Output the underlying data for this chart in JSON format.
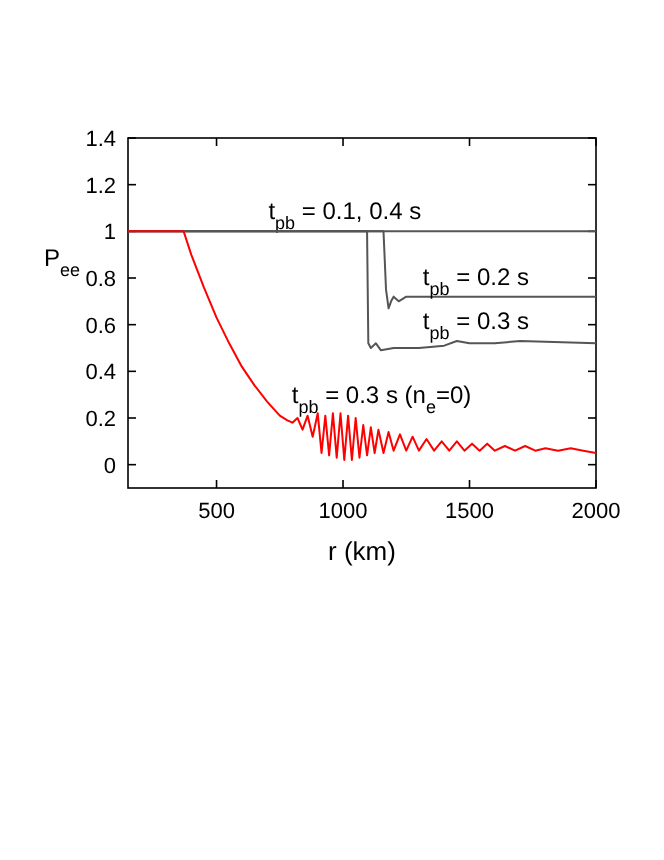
{
  "chart_data": {
    "type": "line",
    "xlabel": "r (km)",
    "ylabel": "P$_{ee}$",
    "xlim": [
      150,
      2000
    ],
    "ylim": [
      -0.1,
      1.4
    ],
    "xticks": [
      500,
      1000,
      1500,
      2000
    ],
    "yticks": [
      0,
      0.2,
      0.4,
      0.6,
      0.8,
      1,
      1.2,
      1.4
    ],
    "grid": false,
    "marker": "none",
    "line_style": "solid",
    "series": [
      {
        "name": "t$_{pb}$ = 0.1, 0.4 s",
        "color": "#555555",
        "x": [
          150,
          2000
        ],
        "values": [
          1,
          1
        ]
      },
      {
        "name": "t$_{pb}$ = 0.2 s",
        "color": "#555555",
        "x": [
          150,
          1160,
          1170,
          1180,
          1190,
          1200,
          1220,
          1250,
          2000
        ],
        "values": [
          1,
          1,
          0.75,
          0.67,
          0.7,
          0.72,
          0.7,
          0.72,
          0.72
        ]
      },
      {
        "name": "t$_{pb}$ = 0.3 s",
        "color": "#555555",
        "x": [
          150,
          1095,
          1100,
          1110,
          1130,
          1150,
          1200,
          1300,
          1400,
          1450,
          1500,
          1600,
          1700,
          2000
        ],
        "values": [
          1,
          1,
          0.52,
          0.5,
          0.52,
          0.49,
          0.5,
          0.5,
          0.51,
          0.53,
          0.52,
          0.52,
          0.53,
          0.52
        ]
      },
      {
        "name": "t$_{pb}$ = 0.3 s (n$_{e}$=0)",
        "color": "#ff0000",
        "x": [
          150,
          370,
          400,
          450,
          500,
          550,
          600,
          650,
          700,
          750,
          780,
          800,
          820,
          840,
          860,
          880,
          900,
          915,
          930,
          945,
          960,
          975,
          990,
          1005,
          1020,
          1035,
          1050,
          1065,
          1080,
          1095,
          1110,
          1125,
          1140,
          1160,
          1180,
          1200,
          1225,
          1250,
          1275,
          1300,
          1330,
          1360,
          1390,
          1420,
          1450,
          1480,
          1510,
          1540,
          1570,
          1600,
          1640,
          1680,
          1720,
          1760,
          1800,
          1850,
          1900,
          1950,
          2000
        ],
        "values": [
          1,
          1,
          0.9,
          0.76,
          0.63,
          0.52,
          0.42,
          0.34,
          0.27,
          0.21,
          0.19,
          0.18,
          0.2,
          0.15,
          0.21,
          0.12,
          0.22,
          0.05,
          0.21,
          0.04,
          0.22,
          0.03,
          0.22,
          0.02,
          0.21,
          0.02,
          0.2,
          0.03,
          0.17,
          0.04,
          0.16,
          0.05,
          0.15,
          0.05,
          0.14,
          0.06,
          0.13,
          0.06,
          0.12,
          0.06,
          0.11,
          0.06,
          0.1,
          0.06,
          0.1,
          0.06,
          0.09,
          0.06,
          0.09,
          0.06,
          0.08,
          0.06,
          0.08,
          0.06,
          0.07,
          0.06,
          0.07,
          0.06,
          0.05
        ]
      }
    ]
  }
}
